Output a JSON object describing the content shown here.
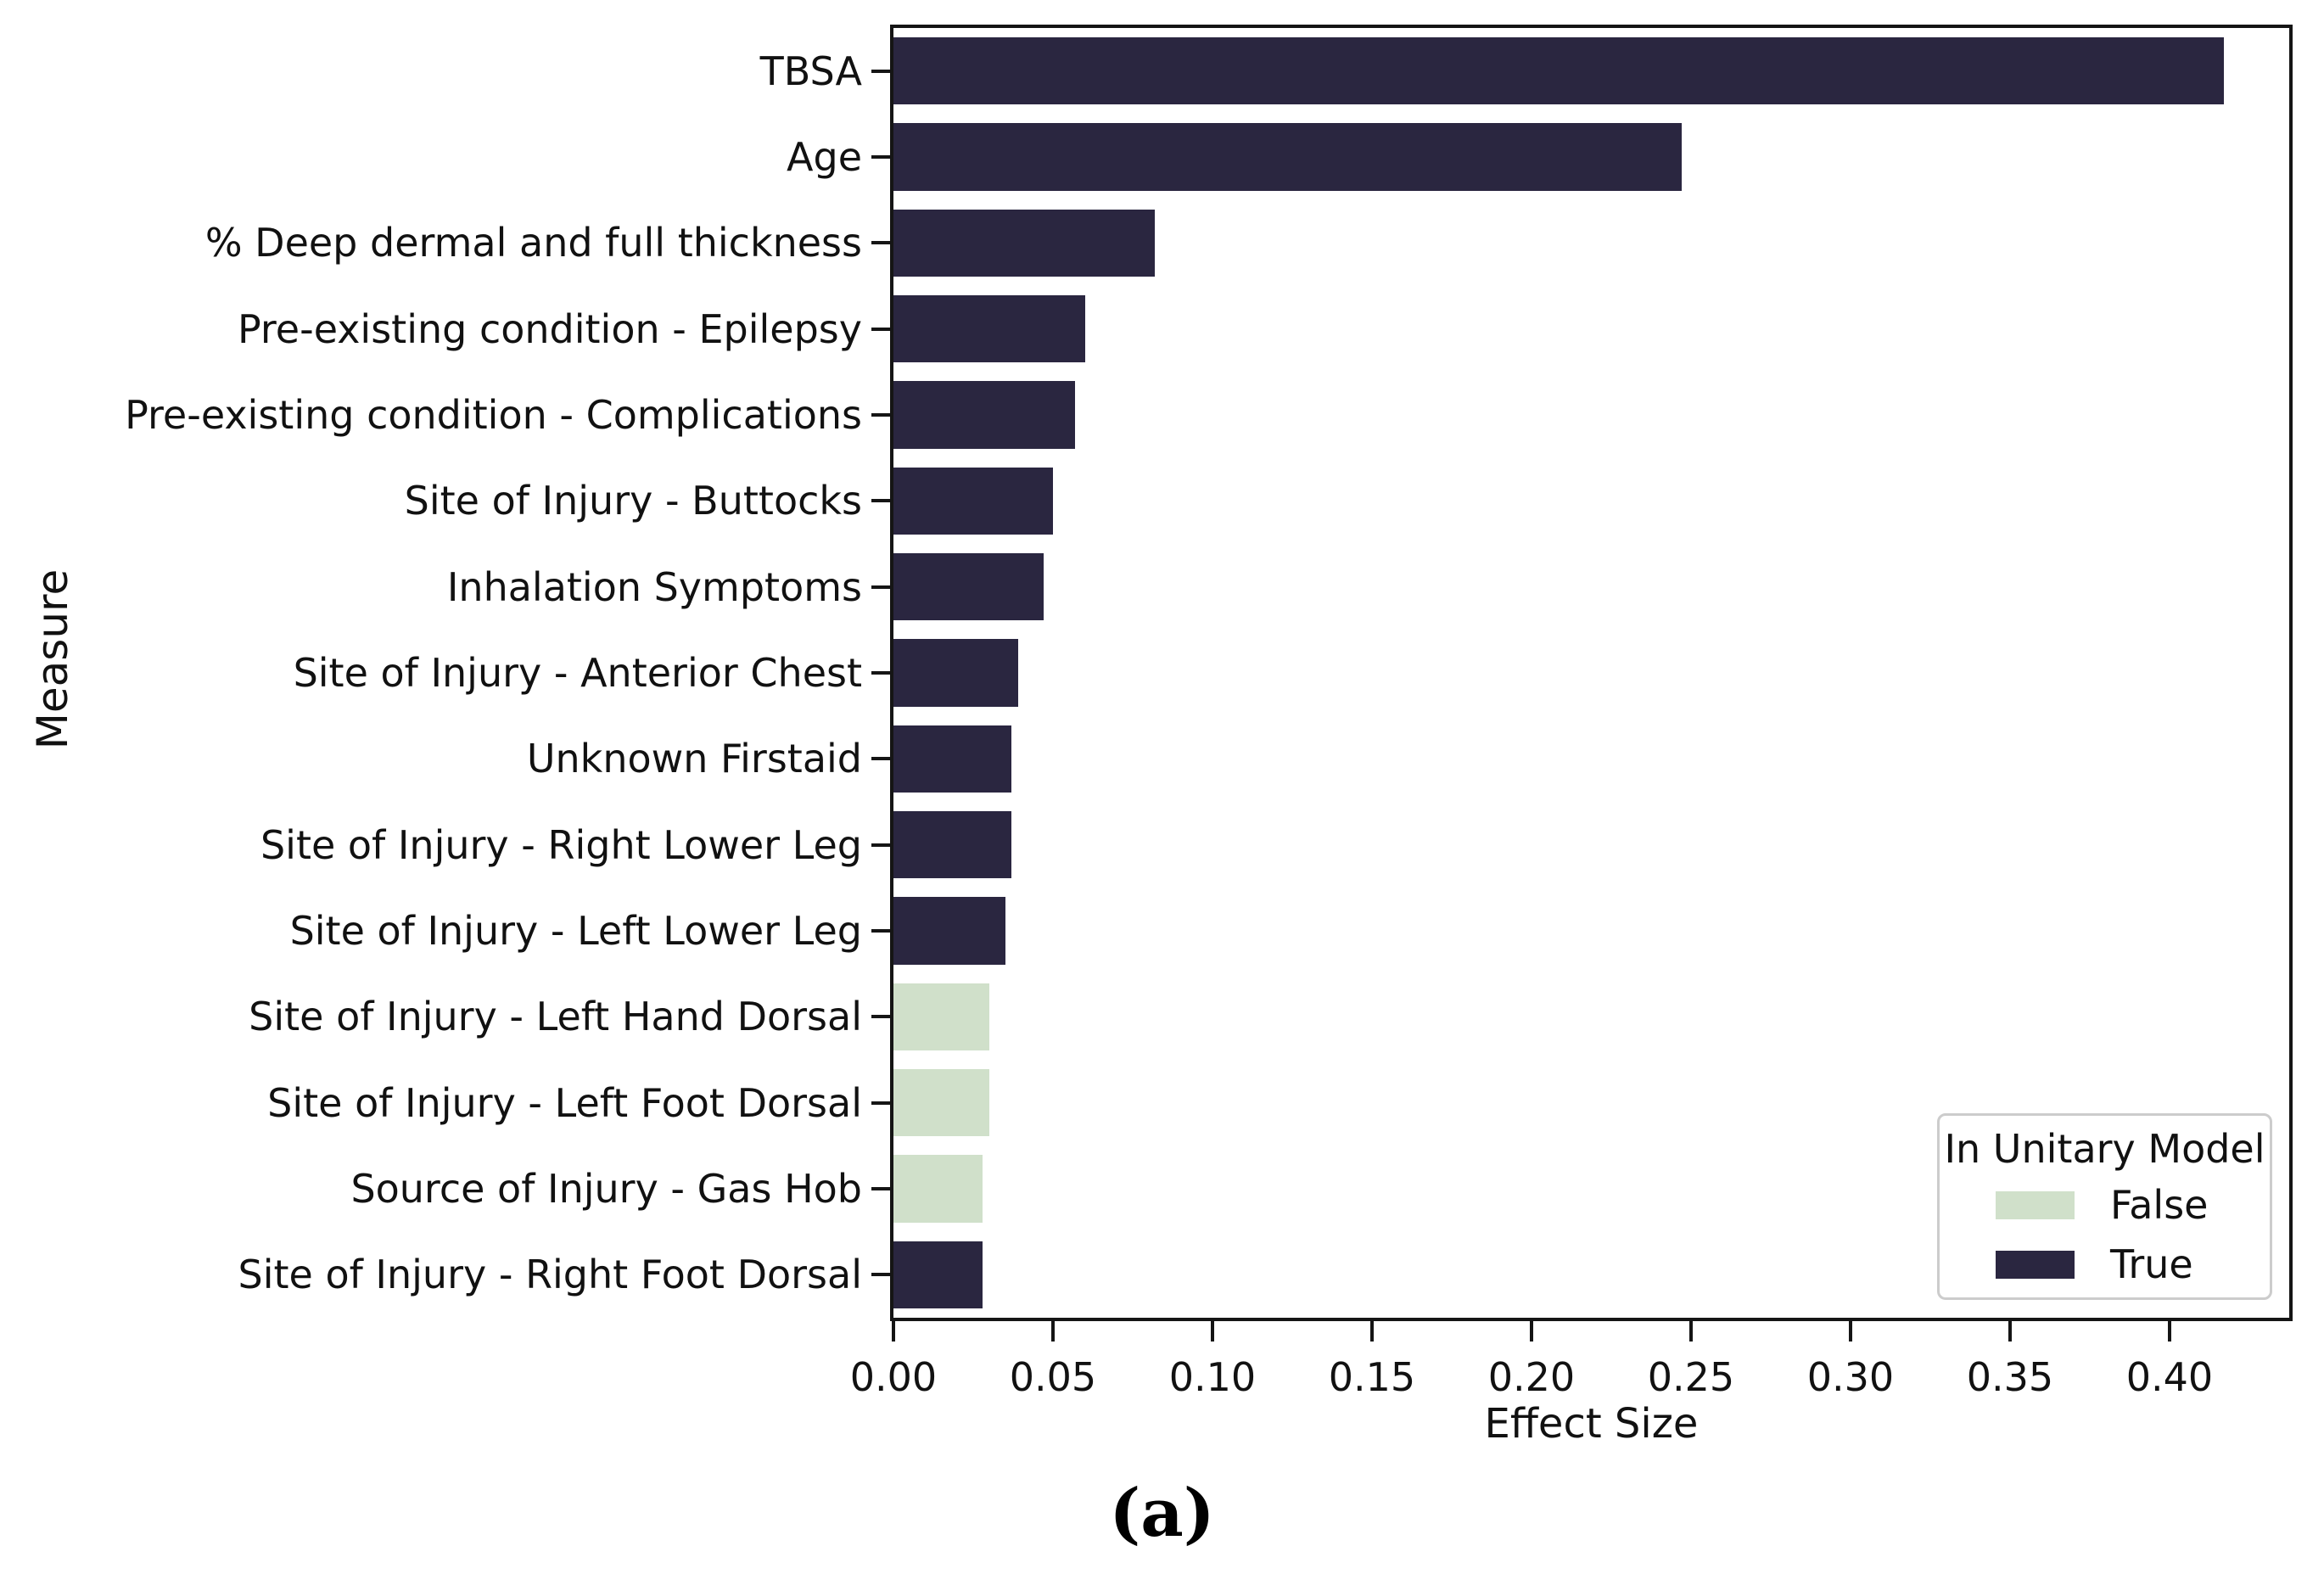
{
  "figure": {
    "caption": "(a)",
    "legend": {
      "title": "In Unitary Model",
      "items": [
        {
          "label": "False",
          "color": "#d0e0ca"
        },
        {
          "label": "True",
          "color": "#2a2640"
        }
      ]
    }
  },
  "chart_data": {
    "type": "bar",
    "orientation": "horizontal",
    "title": "",
    "xlabel": "Effect Size",
    "ylabel": "Measure",
    "xlim": [
      0,
      0.4375
    ],
    "xticks": [
      0.0,
      0.05,
      0.1,
      0.15,
      0.2,
      0.25,
      0.3,
      0.35,
      0.4
    ],
    "xtick_labels": [
      "0.00",
      "0.05",
      "0.10",
      "0.15",
      "0.20",
      "0.25",
      "0.30",
      "0.35",
      "0.40"
    ],
    "grid": false,
    "legend_position": "lower right",
    "series_colors": {
      "True": "#2a2640",
      "False": "#d0e0ca"
    },
    "categories": [
      "TBSA",
      "Age",
      "% Deep dermal and full thickness",
      "Pre-existing condition - Epilepsy",
      "Pre-existing condition - Complications",
      "Site of Injury - Buttocks",
      "Inhalation Symptoms",
      "Site of Injury - Anterior Chest",
      "Unknown Firstaid",
      "Site of Injury - Right Lower Leg",
      "Site of Injury - Left Lower Leg",
      "Site of Injury - Left Hand Dorsal",
      "Site of Injury - Left Foot Dorsal",
      "Source of Injury - Gas Hob",
      "Site of Injury - Right Foot Dorsal"
    ],
    "values": [
      0.417,
      0.247,
      0.082,
      0.06,
      0.057,
      0.05,
      0.047,
      0.039,
      0.037,
      0.037,
      0.035,
      0.03,
      0.03,
      0.028,
      0.028
    ],
    "in_unitary_model": [
      "True",
      "True",
      "True",
      "True",
      "True",
      "True",
      "True",
      "True",
      "True",
      "True",
      "True",
      "False",
      "False",
      "False",
      "True"
    ]
  }
}
